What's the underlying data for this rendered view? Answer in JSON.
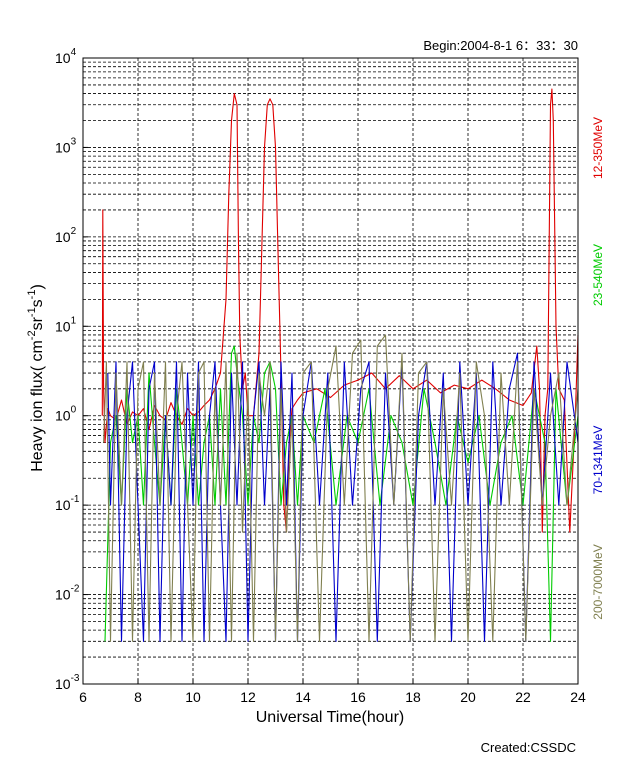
{
  "chart_data": {
    "type": "line",
    "header": "Begin:2004-8-1    6：33：30",
    "footer": "Created:CSSDC",
    "xlabel": "Universal Time(hour)",
    "ylabel": "Heavy  ion  flux( cm",
    "ylabel_units": {
      "sup1": "-2",
      "sr": "sr",
      "sup2": "-1",
      "s": "s",
      "sup3": "-1",
      "close": ")"
    },
    "xlim": [
      6,
      24
    ],
    "ylim": [
      0.001,
      10000
    ],
    "y_scale": "log",
    "grid": true,
    "x_ticks": [
      "6",
      "8",
      "10",
      "12",
      "14",
      "16",
      "18",
      "20",
      "22",
      "24"
    ],
    "y_ticks": [
      {
        "base": "10",
        "exp": "-3"
      },
      {
        "base": "10",
        "exp": "-2"
      },
      {
        "base": "10",
        "exp": "-1"
      },
      {
        "base": "10",
        "exp": "0"
      },
      {
        "base": "10",
        "exp": "1"
      },
      {
        "base": "10",
        "exp": "2"
      },
      {
        "base": "10",
        "exp": "3"
      },
      {
        "base": "10",
        "exp": "4"
      }
    ],
    "series": [
      {
        "name": "12-350MeV",
        "color": "#e00000",
        "x": [
          6.7,
          6.72,
          6.75,
          6.8,
          6.9,
          7.0,
          7.2,
          7.4,
          7.6,
          7.8,
          8.0,
          8.2,
          8.4,
          8.6,
          8.8,
          9.0,
          9.2,
          9.4,
          9.6,
          9.8,
          10.0,
          10.2,
          10.4,
          10.6,
          10.8,
          11.0,
          11.2,
          11.3,
          11.4,
          11.5,
          11.6,
          11.65,
          11.7,
          11.8,
          11.9,
          12.0,
          12.2,
          12.4,
          12.6,
          12.7,
          12.8,
          12.9,
          13.0,
          13.1,
          13.2,
          13.3,
          13.4,
          13.5,
          13.6,
          13.8,
          14.0,
          14.5,
          15.0,
          15.5,
          16.0,
          16.5,
          17.0,
          17.5,
          18.0,
          18.5,
          19.0,
          19.5,
          20.0,
          20.5,
          21.0,
          21.5,
          22.0,
          22.3,
          22.5,
          22.6,
          22.7,
          22.8,
          22.9,
          23.0,
          23.05,
          23.1,
          23.2,
          23.3,
          23.5,
          23.7,
          23.9,
          24.0
        ],
        "values": [
          1.0,
          200,
          2.0,
          0.5,
          1.2,
          1.0,
          0.9,
          1.5,
          0.8,
          1.1,
          1.0,
          1.2,
          0.7,
          1.3,
          1.0,
          0.9,
          1.4,
          1.0,
          0.8,
          1.2,
          1.0,
          1.1,
          1.3,
          1.5,
          2.0,
          3.0,
          20,
          300,
          2000,
          4000,
          3000,
          100,
          8.0,
          2.0,
          3.0,
          1.0,
          1.0,
          5.0,
          1000,
          3000,
          3500,
          3000,
          1000,
          50,
          3.0,
          0.1,
          0.05,
          0.5,
          1.2,
          1.5,
          1.8,
          2.0,
          1.6,
          2.2,
          2.5,
          3.0,
          2.0,
          2.8,
          2.0,
          2.5,
          1.8,
          2.2,
          2.0,
          2.5,
          2.0,
          1.5,
          1.3,
          1.8,
          6.0,
          2.0,
          0.05,
          1.0,
          2.0,
          3000,
          4500,
          2000,
          10,
          2.0,
          1.5,
          0.05,
          1.0,
          8.0
        ]
      },
      {
        "name": "23-540MeV",
        "color": "#00cc00",
        "x": [
          6.8,
          7.0,
          7.2,
          7.4,
          7.6,
          7.8,
          8.0,
          8.2,
          8.4,
          8.6,
          8.8,
          9.0,
          9.2,
          9.4,
          9.6,
          9.8,
          10.0,
          10.2,
          10.4,
          10.6,
          10.8,
          11.0,
          11.2,
          11.4,
          11.5,
          11.6,
          11.8,
          12.0,
          12.2,
          12.4,
          12.6,
          12.8,
          13.0,
          13.2,
          13.4,
          13.6,
          13.8,
          14.0,
          14.4,
          14.8,
          15.2,
          15.6,
          16.0,
          16.4,
          16.8,
          17.2,
          17.6,
          18.0,
          18.4,
          18.8,
          19.2,
          19.6,
          20.0,
          20.4,
          20.8,
          21.2,
          21.6,
          22.0,
          22.4,
          22.8,
          23.0,
          23.2,
          23.6,
          24.0
        ],
        "values": [
          0.003,
          0.5,
          1.0,
          0.1,
          2.0,
          0.5,
          1.0,
          0.1,
          3.0,
          0.5,
          0.1,
          1.0,
          0.1,
          2.0,
          0.5,
          0.1,
          1.0,
          0.1,
          0.5,
          1.0,
          0.1,
          2.0,
          0.1,
          5.0,
          6.0,
          3.0,
          1.0,
          0.1,
          1.0,
          0.5,
          3.0,
          4.0,
          2.0,
          0.1,
          0.5,
          1.0,
          0.1,
          1.0,
          0.5,
          2.0,
          0.1,
          1.0,
          0.5,
          2.0,
          0.1,
          1.0,
          0.5,
          0.1,
          2.0,
          0.5,
          0.1,
          1.0,
          0.3,
          1.0,
          0.1,
          0.5,
          1.0,
          0.1,
          2.0,
          0.5,
          0.003,
          2.0,
          0.1,
          1.0
        ]
      },
      {
        "name": "70-1341MeV",
        "color": "#0000cc",
        "x": [
          6.9,
          7.0,
          7.2,
          7.4,
          7.6,
          7.8,
          8.0,
          8.2,
          8.4,
          8.6,
          8.8,
          9.0,
          9.2,
          9.4,
          9.6,
          9.8,
          10.0,
          10.2,
          10.4,
          10.6,
          10.8,
          11.0,
          11.2,
          11.4,
          11.6,
          11.8,
          12.0,
          12.2,
          12.4,
          12.6,
          12.8,
          13.0,
          13.2,
          13.4,
          13.6,
          13.8,
          14.0,
          14.3,
          14.6,
          14.9,
          15.2,
          15.5,
          15.8,
          16.1,
          16.4,
          16.7,
          17.0,
          17.3,
          17.6,
          17.9,
          18.2,
          18.5,
          18.8,
          19.1,
          19.4,
          19.7,
          20.0,
          20.3,
          20.6,
          20.9,
          21.2,
          21.5,
          21.8,
          22.1,
          22.4,
          22.7,
          23.0,
          23.3,
          23.6,
          24.0
        ],
        "values": [
          3.0,
          0.1,
          4.0,
          0.003,
          1.0,
          4.0,
          0.1,
          0.003,
          2.0,
          4.0,
          0.003,
          1.0,
          0.1,
          4.0,
          0.003,
          3.0,
          0.1,
          4.0,
          0.003,
          1.0,
          4.0,
          0.1,
          0.003,
          3.0,
          0.1,
          4.0,
          0.003,
          1.0,
          4.0,
          0.1,
          2.0,
          0.003,
          4.0,
          0.1,
          3.0,
          0.003,
          1.0,
          4.0,
          0.1,
          3.0,
          0.003,
          4.0,
          0.1,
          2.0,
          4.0,
          0.003,
          3.0,
          0.1,
          4.0,
          0.003,
          1.0,
          4.0,
          0.1,
          3.0,
          0.003,
          4.0,
          0.1,
          3.0,
          0.003,
          4.0,
          0.1,
          2.0,
          5.0,
          0.003,
          4.0,
          0.1,
          3.0,
          0.1,
          4.0,
          0.5
        ]
      },
      {
        "name": "200-7000MeV",
        "color": "#808050",
        "x": [
          6.75,
          6.85,
          7.0,
          7.2,
          7.4,
          7.6,
          7.8,
          8.0,
          8.2,
          8.4,
          8.6,
          8.8,
          9.0,
          9.2,
          9.4,
          9.6,
          9.8,
          10.0,
          10.2,
          10.4,
          10.6,
          10.8,
          11.0,
          11.2,
          11.4,
          11.6,
          11.8,
          12.0,
          12.2,
          12.4,
          12.6,
          12.8,
          13.0,
          13.2,
          13.4,
          13.6,
          13.8,
          14.0,
          14.3,
          14.6,
          14.9,
          15.2,
          15.5,
          15.8,
          16.1,
          16.4,
          16.7,
          17.0,
          17.3,
          17.6,
          17.9,
          18.2,
          18.5,
          18.8,
          19.1,
          19.4,
          19.7,
          20.0,
          20.3,
          20.6,
          20.9,
          21.2,
          21.5,
          21.8,
          22.1,
          22.4,
          22.7,
          23.0,
          23.3,
          23.6,
          24.0
        ],
        "values": [
          0.5,
          4.0,
          0.003,
          3.0,
          0.1,
          4.0,
          0.003,
          2.0,
          4.0,
          0.003,
          3.0,
          0.1,
          4.0,
          0.003,
          1.0,
          4.0,
          0.1,
          0.003,
          3.0,
          4.0,
          0.003,
          2.0,
          0.1,
          4.0,
          0.003,
          5.0,
          0.05,
          2.0,
          0.003,
          3.0,
          1.0,
          4.0,
          0.003,
          2.0,
          0.05,
          1.0,
          0.003,
          3.0,
          4.0,
          0.003,
          2.0,
          6.0,
          0.1,
          5.0,
          7.0,
          0.003,
          6.0,
          8.0,
          0.1,
          5.0,
          0.003,
          3.0,
          4.0,
          0.003,
          2.0,
          0.1,
          3.0,
          0.003,
          4.0,
          1.0,
          0.003,
          3.0,
          0.1,
          4.0,
          0.003,
          2.0,
          0.1,
          1.0,
          3.0,
          0.1,
          2.0
        ]
      }
    ]
  }
}
